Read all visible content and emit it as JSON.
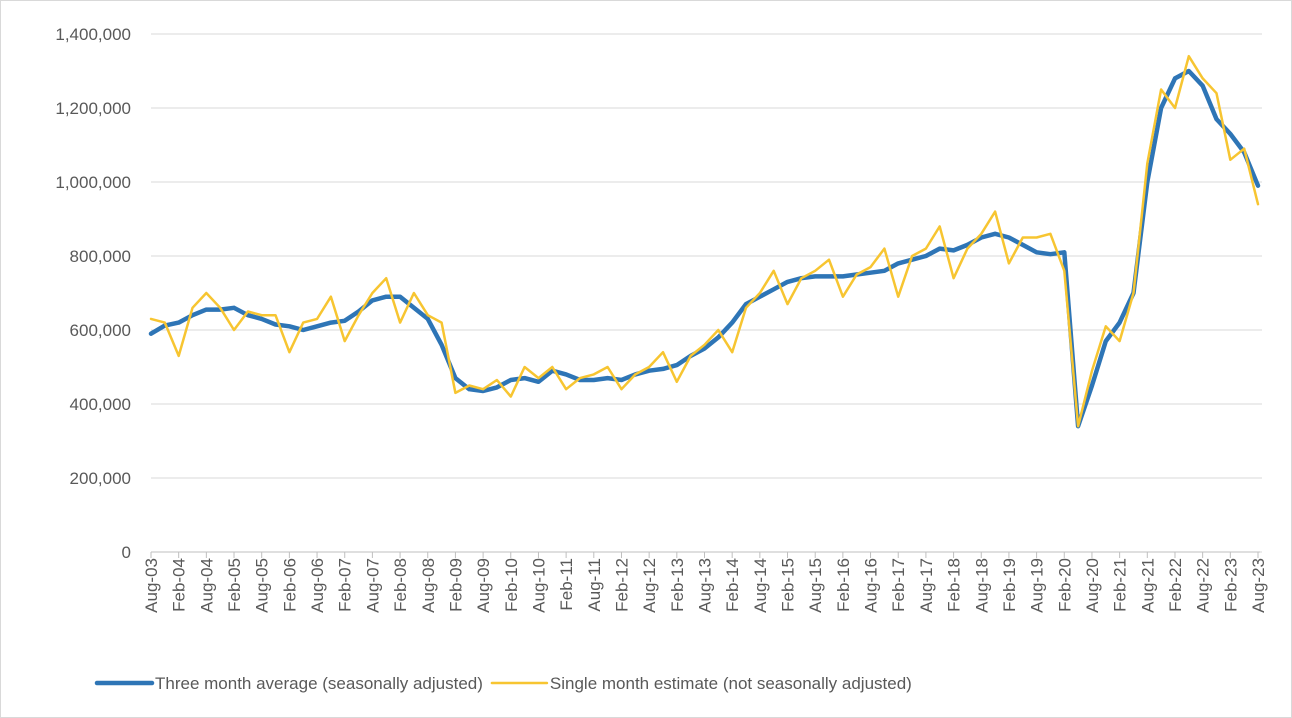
{
  "chart_data": {
    "type": "line",
    "categories": [
      "Aug-03",
      null,
      "Feb-04",
      null,
      "Aug-04",
      null,
      "Feb-05",
      null,
      "Aug-05",
      null,
      "Feb-06",
      null,
      "Aug-06",
      null,
      "Feb-07",
      null,
      "Aug-07",
      null,
      "Feb-08",
      null,
      "Aug-08",
      null,
      "Feb-09",
      null,
      "Aug-09",
      null,
      "Feb-10",
      null,
      "Aug-10",
      null,
      "Feb-11",
      null,
      "Aug-11",
      null,
      "Feb-12",
      null,
      "Aug-12",
      null,
      "Feb-13",
      null,
      "Aug-13",
      null,
      "Feb-14",
      null,
      "Aug-14",
      null,
      "Feb-15",
      null,
      "Aug-15",
      null,
      "Feb-16",
      null,
      "Aug-16",
      null,
      "Feb-17",
      null,
      "Aug-17",
      null,
      "Feb-18",
      null,
      "Aug-18",
      null,
      "Feb-19",
      null,
      "Aug-19",
      null,
      "Feb-20",
      null,
      "Aug-20",
      null,
      "Feb-21",
      null,
      "Aug-21",
      null,
      "Feb-22",
      null,
      "Aug-22",
      null,
      "Feb-23",
      null,
      "Aug-23"
    ],
    "series": [
      {
        "name": "Three month average (seasonally adjusted)",
        "color": "#2e75b6",
        "width": 4.5,
        "values": [
          590000,
          612000,
          620000,
          640000,
          655000,
          655000,
          660000,
          640000,
          630000,
          615000,
          610000,
          600000,
          610000,
          620000,
          625000,
          650000,
          680000,
          690000,
          690000,
          660000,
          630000,
          560000,
          470000,
          440000,
          435000,
          445000,
          465000,
          470000,
          460000,
          490000,
          480000,
          465000,
          465000,
          470000,
          465000,
          480000,
          490000,
          495000,
          505000,
          530000,
          550000,
          580000,
          620000,
          670000,
          690000,
          710000,
          730000,
          740000,
          745000,
          745000,
          745000,
          750000,
          755000,
          760000,
          780000,
          790000,
          800000,
          820000,
          815000,
          830000,
          850000,
          860000,
          850000,
          830000,
          810000,
          805000,
          810000,
          340000,
          450000,
          570000,
          620000,
          700000,
          1000000,
          1200000,
          1280000,
          1300000,
          1260000,
          1170000,
          1130000,
          1080000,
          990000
        ]
      },
      {
        "name": "Single month estimate (not seasonally adjusted)",
        "color": "#f7c531",
        "width": 2.5,
        "values": [
          630000,
          620000,
          530000,
          660000,
          700000,
          660000,
          600000,
          650000,
          640000,
          640000,
          540000,
          620000,
          630000,
          690000,
          570000,
          640000,
          700000,
          740000,
          620000,
          700000,
          640000,
          620000,
          430000,
          450000,
          440000,
          465000,
          420000,
          500000,
          470000,
          500000,
          440000,
          470000,
          480000,
          500000,
          440000,
          480000,
          500000,
          540000,
          460000,
          530000,
          560000,
          600000,
          540000,
          660000,
          700000,
          760000,
          670000,
          740000,
          760000,
          790000,
          690000,
          750000,
          770000,
          820000,
          690000,
          800000,
          820000,
          880000,
          740000,
          820000,
          860000,
          920000,
          780000,
          850000,
          850000,
          860000,
          760000,
          340000,
          490000,
          610000,
          570000,
          700000,
          1050000,
          1250000,
          1200000,
          1340000,
          1280000,
          1240000,
          1060000,
          1090000,
          940000
        ]
      }
    ],
    "ylim": [
      0,
      1400000
    ],
    "yticks": [
      0,
      {
        "value": 200000,
        "label": "200,000"
      },
      {
        "value": 400000,
        "label": "400,000"
      },
      {
        "value": 600000,
        "label": "600,000"
      },
      {
        "value": 800000,
        "label": "800,000"
      },
      {
        "value": 1000000,
        "label": "1,000,000"
      },
      {
        "value": 1200000,
        "label": "1,200,000"
      },
      {
        "value": 1400000,
        "label": "1,400,000"
      }
    ],
    "grid": true,
    "legend": "bottom"
  }
}
